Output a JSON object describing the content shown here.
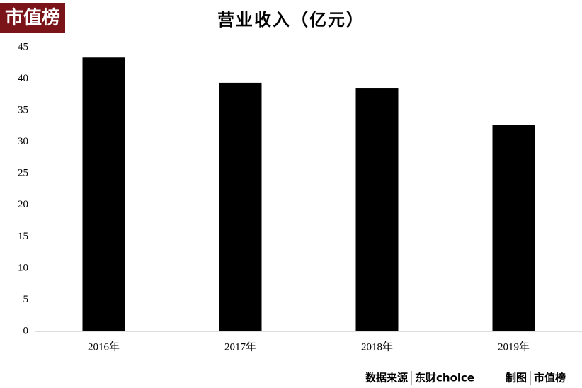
{
  "chart_data": {
    "type": "bar",
    "title": "营业收入（亿元）",
    "logo": "市值榜",
    "categories": [
      "2016年",
      "2017年",
      "2018年",
      "2019年"
    ],
    "values": [
      43.4,
      39.4,
      38.6,
      32.7
    ],
    "color": "#000000",
    "ylim": [
      0,
      45
    ],
    "yticks": [
      0,
      5,
      10,
      15,
      20,
      25,
      30,
      35,
      40,
      45
    ],
    "grid": false,
    "source_label": "数据来源",
    "source": "东财choice",
    "credit_label": "制图",
    "credit": "市值榜"
  }
}
